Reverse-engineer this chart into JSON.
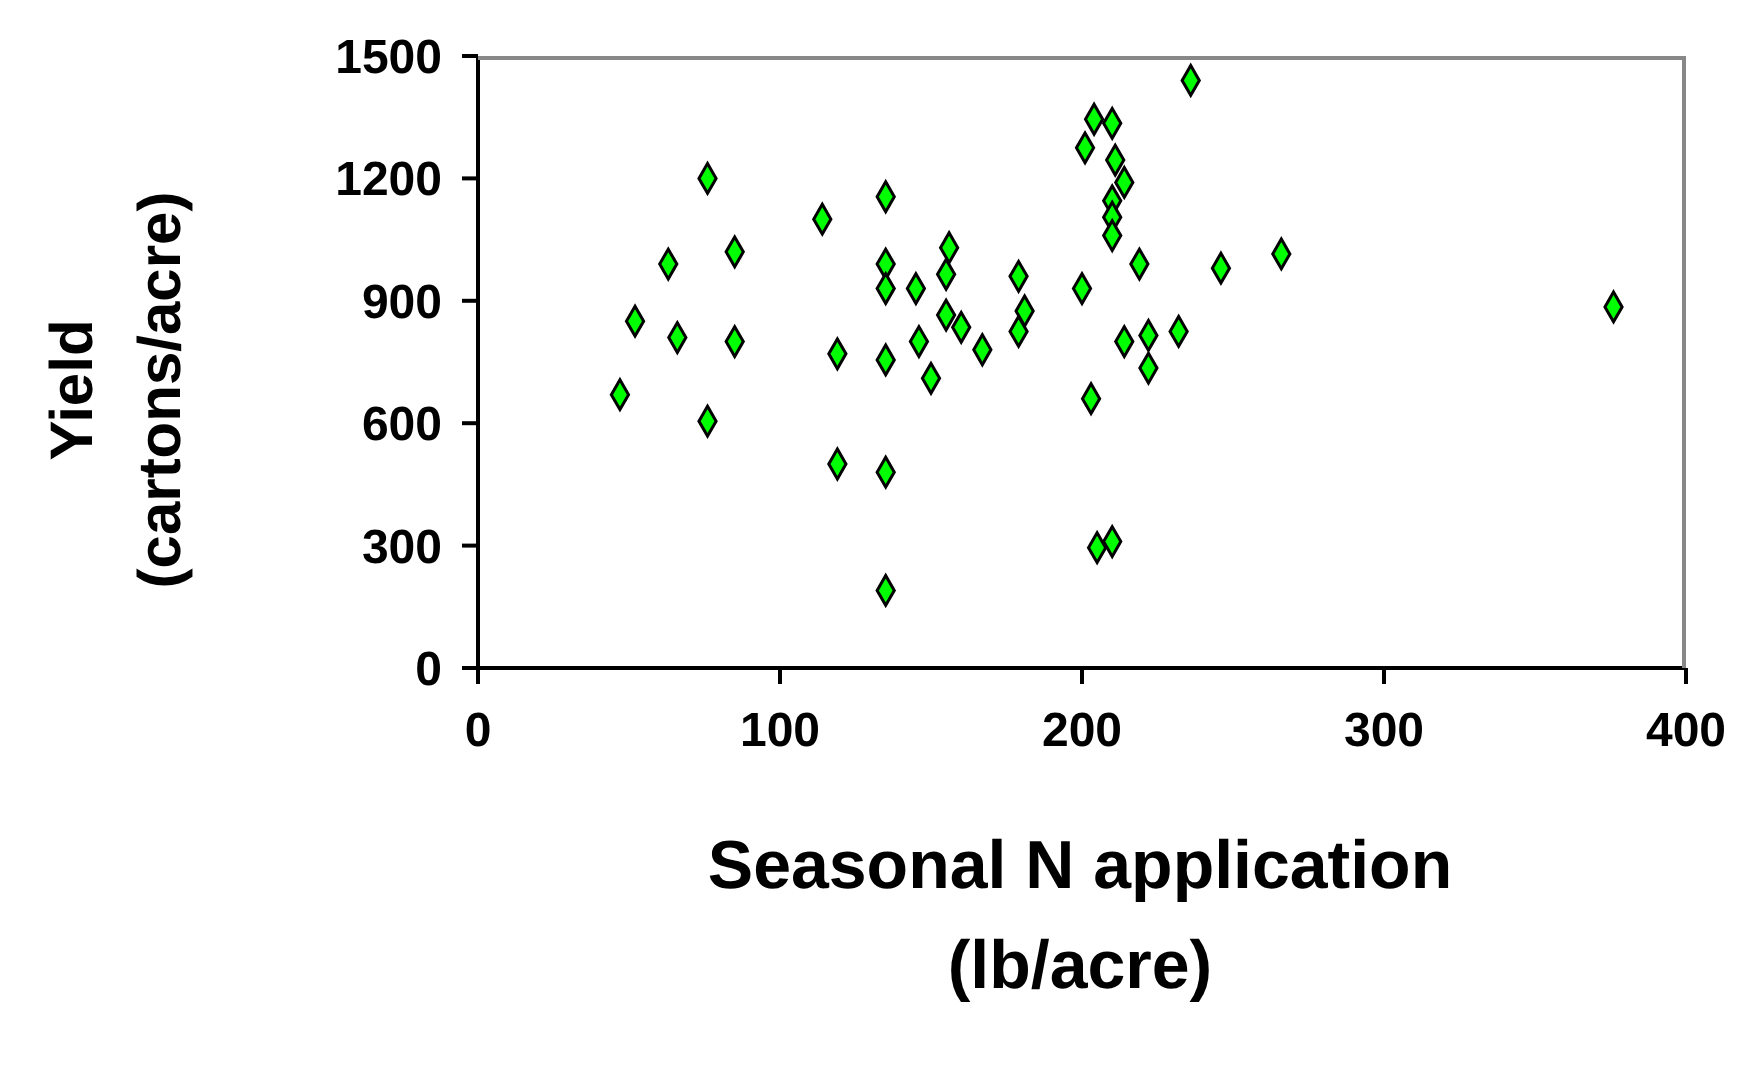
{
  "chart_data": {
    "type": "scatter",
    "xlabel": "Seasonal N application (lb/acre)",
    "ylabel": "Yield (cartons/acre)",
    "xlim": [
      0,
      400
    ],
    "xticks": [
      0,
      100,
      200,
      300,
      400
    ],
    "ylim": [
      0,
      1500
    ],
    "yticks": [
      0,
      300,
      600,
      900,
      1200,
      1500
    ],
    "grid": false,
    "legend": false,
    "marker": "diamond",
    "series": [
      {
        "color": "#00ff00",
        "x": [
          76,
          63,
          85,
          52,
          66,
          85,
          47,
          76,
          114,
          119,
          119,
          135,
          135,
          135,
          135,
          135,
          135,
          236,
          204,
          210,
          201,
          211,
          214,
          210,
          210,
          210,
          219,
          246,
          156,
          155,
          145,
          179,
          200,
          181,
          155,
          160,
          179,
          146,
          167,
          150,
          214,
          222,
          232,
          222,
          203,
          205,
          210,
          266,
          376
        ],
        "values": [
          1200,
          990,
          1020,
          850,
          810,
          800,
          670,
          605,
          1100,
          770,
          500,
          1155,
          990,
          930,
          755,
          480,
          190,
          1440,
          1345,
          1335,
          1275,
          1245,
          1190,
          1145,
          1105,
          1060,
          990,
          980,
          1030,
          965,
          930,
          960,
          930,
          875,
          865,
          835,
          825,
          800,
          780,
          710,
          800,
          815,
          825,
          735,
          660,
          295,
          310,
          1015,
          885
        ]
      }
    ]
  }
}
